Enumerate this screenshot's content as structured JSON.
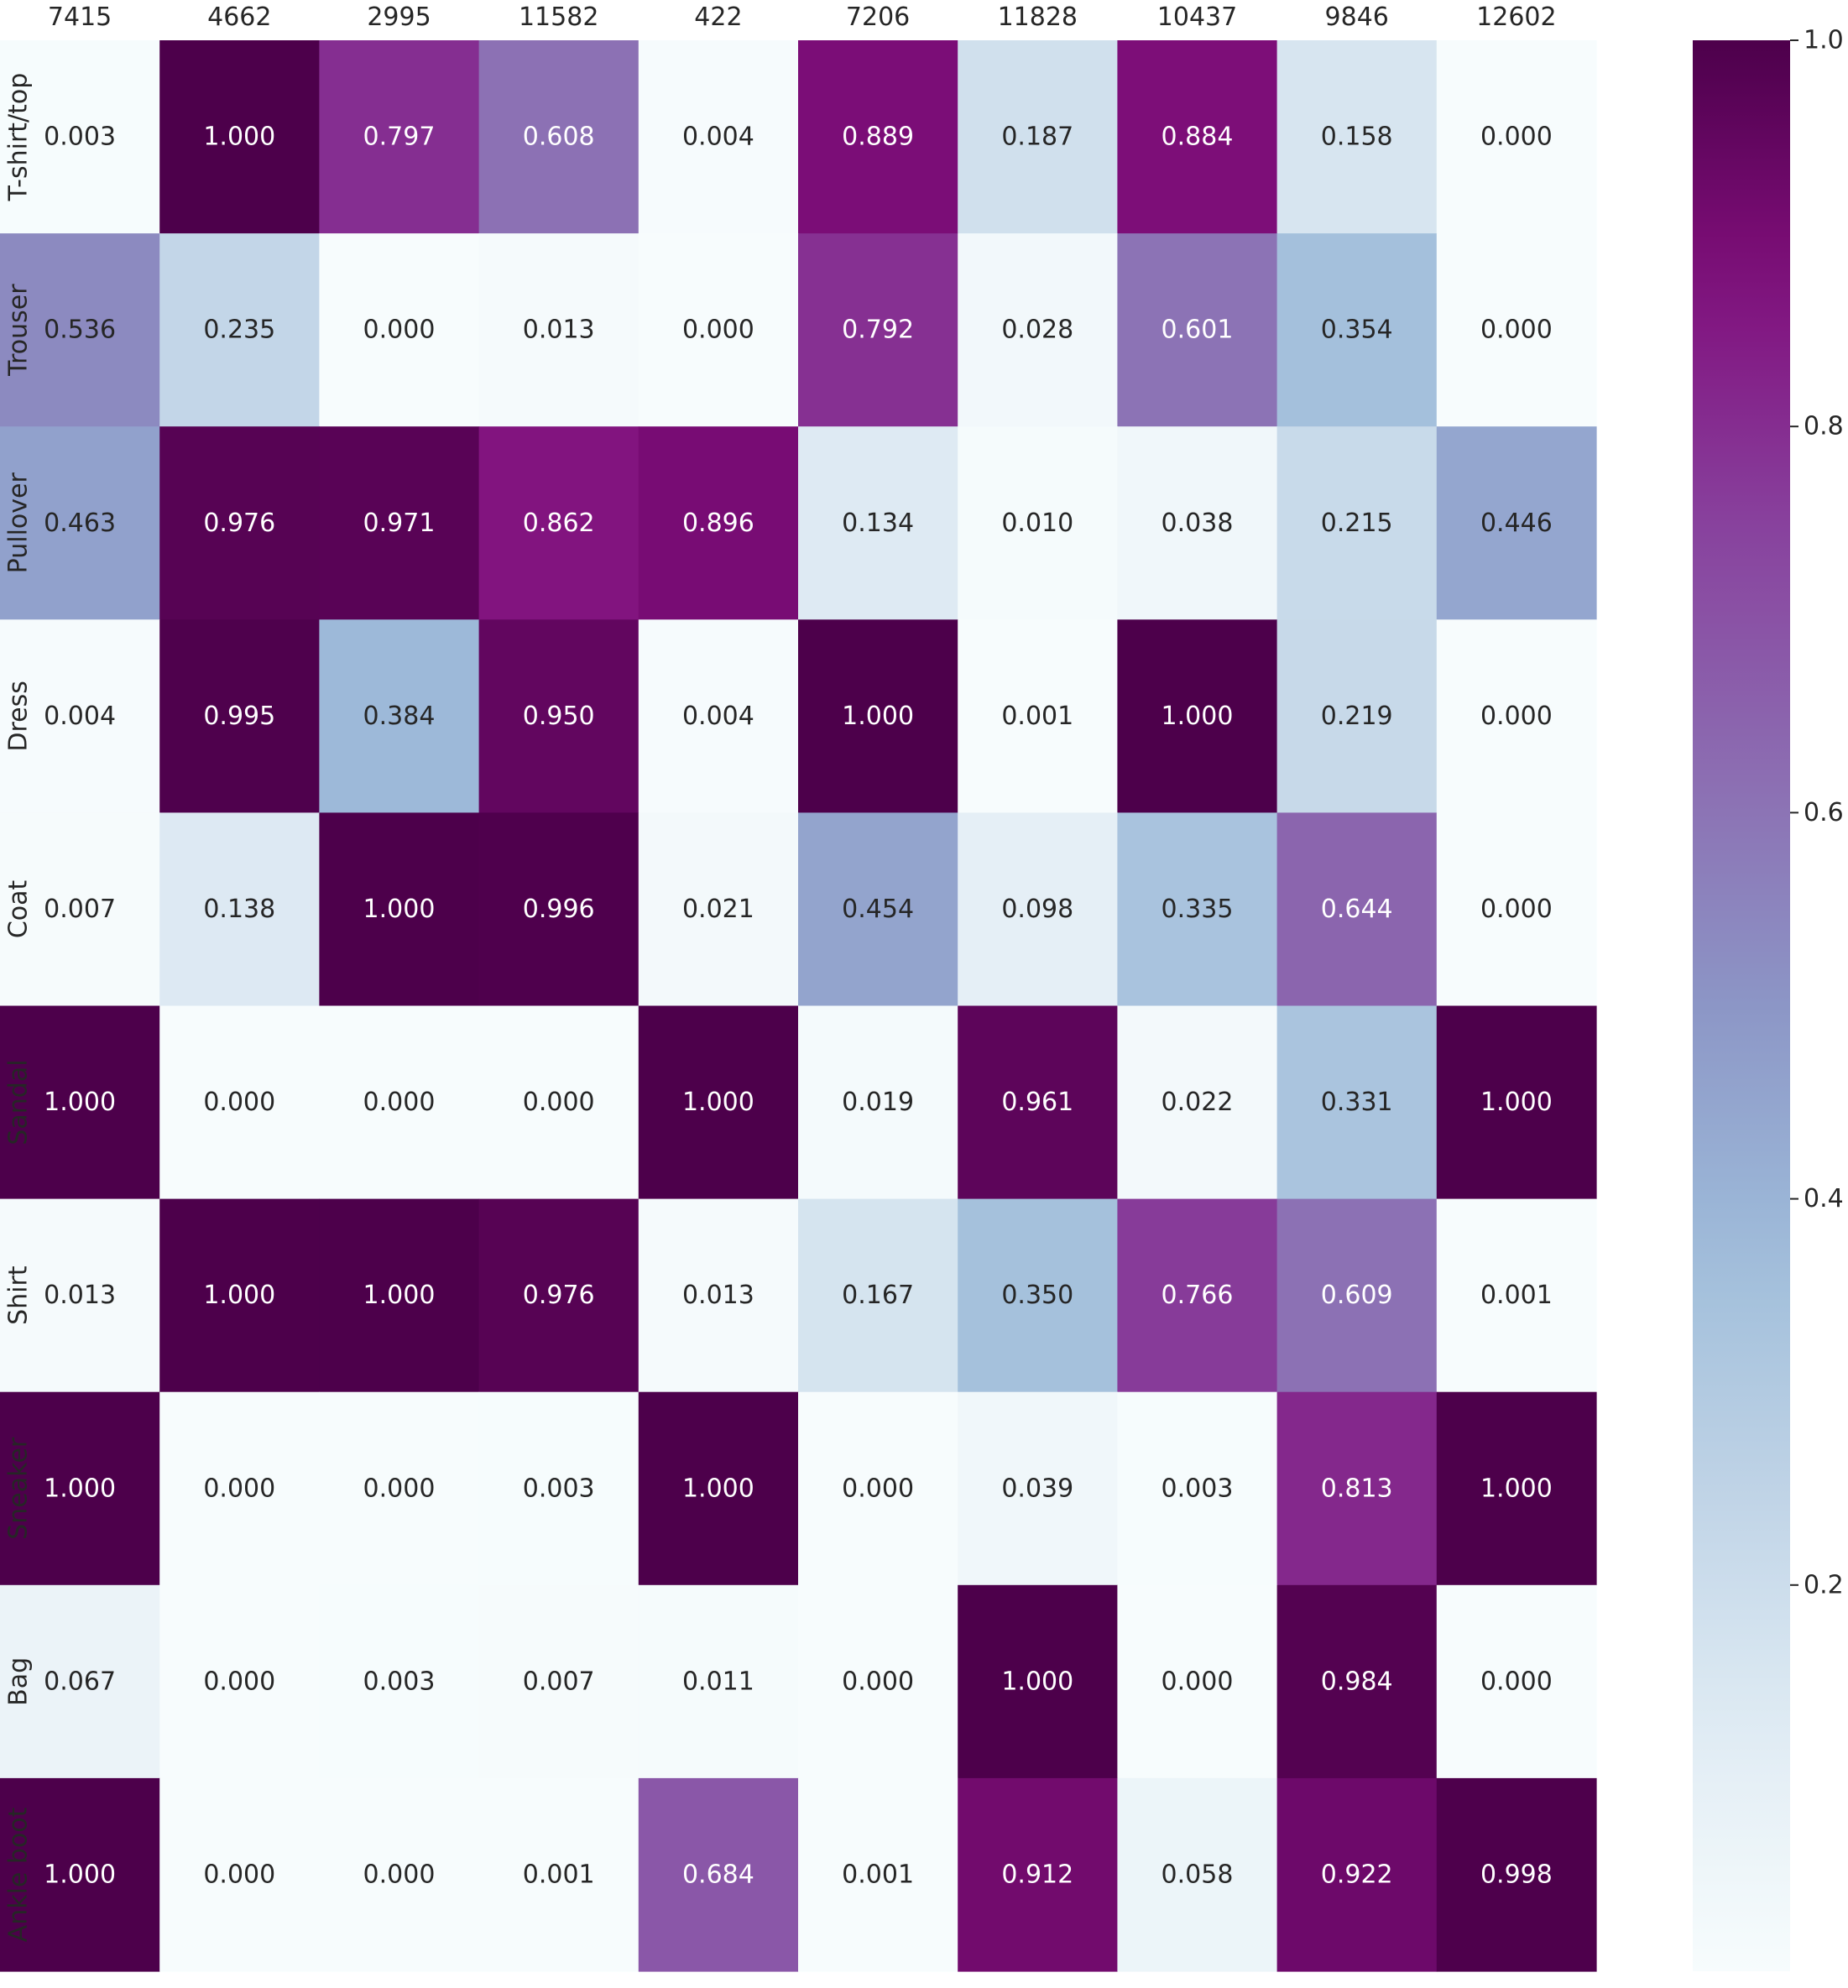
{
  "chart_data": {
    "type": "heatmap",
    "title": "",
    "xlabel": "",
    "ylabel": "",
    "x": [
      "7415",
      "4662",
      "2995",
      "11582",
      "422",
      "7206",
      "11828",
      "10437",
      "9846",
      "12602"
    ],
    "y": [
      "T-shirt/top",
      "Trouser",
      "Pullover",
      "Dress",
      "Coat",
      "Sandal",
      "Shirt",
      "Sneaker",
      "Bag",
      "Ankle boot"
    ],
    "values": [
      [
        0.003,
        1.0,
        0.797,
        0.608,
        0.004,
        0.889,
        0.187,
        0.884,
        0.158,
        0.0
      ],
      [
        0.536,
        0.235,
        0.0,
        0.013,
        0.0,
        0.792,
        0.028,
        0.601,
        0.354,
        0.0
      ],
      [
        0.463,
        0.976,
        0.971,
        0.862,
        0.896,
        0.134,
        0.01,
        0.038,
        0.215,
        0.446
      ],
      [
        0.004,
        0.995,
        0.384,
        0.95,
        0.004,
        1.0,
        0.001,
        1.0,
        0.219,
        0.0
      ],
      [
        0.007,
        0.138,
        1.0,
        0.996,
        0.021,
        0.454,
        0.098,
        0.335,
        0.644,
        0.0
      ],
      [
        1.0,
        0.0,
        0.0,
        0.0,
        1.0,
        0.019,
        0.961,
        0.022,
        0.331,
        1.0
      ],
      [
        0.013,
        1.0,
        1.0,
        0.976,
        0.013,
        0.167,
        0.35,
        0.766,
        0.609,
        0.001
      ],
      [
        1.0,
        0.0,
        0.0,
        0.003,
        1.0,
        0.0,
        0.039,
        0.003,
        0.813,
        1.0
      ],
      [
        0.067,
        0.0,
        0.003,
        0.007,
        0.011,
        0.0,
        1.0,
        0.0,
        0.984,
        0.0
      ],
      [
        1.0,
        0.0,
        0.0,
        0.001,
        0.684,
        0.001,
        0.912,
        0.058,
        0.922,
        0.998
      ]
    ],
    "value_format": "0.000",
    "x_axis_position": "top",
    "colormap": "BuPu",
    "colorbar": {
      "range": [
        0,
        1.0
      ],
      "ticks": [
        0.2,
        0.4,
        0.6,
        0.8,
        1.0
      ],
      "tick_labels": [
        "0.2",
        "0.4",
        "0.6",
        "0.8",
        "1.0"
      ]
    },
    "grid": false
  }
}
